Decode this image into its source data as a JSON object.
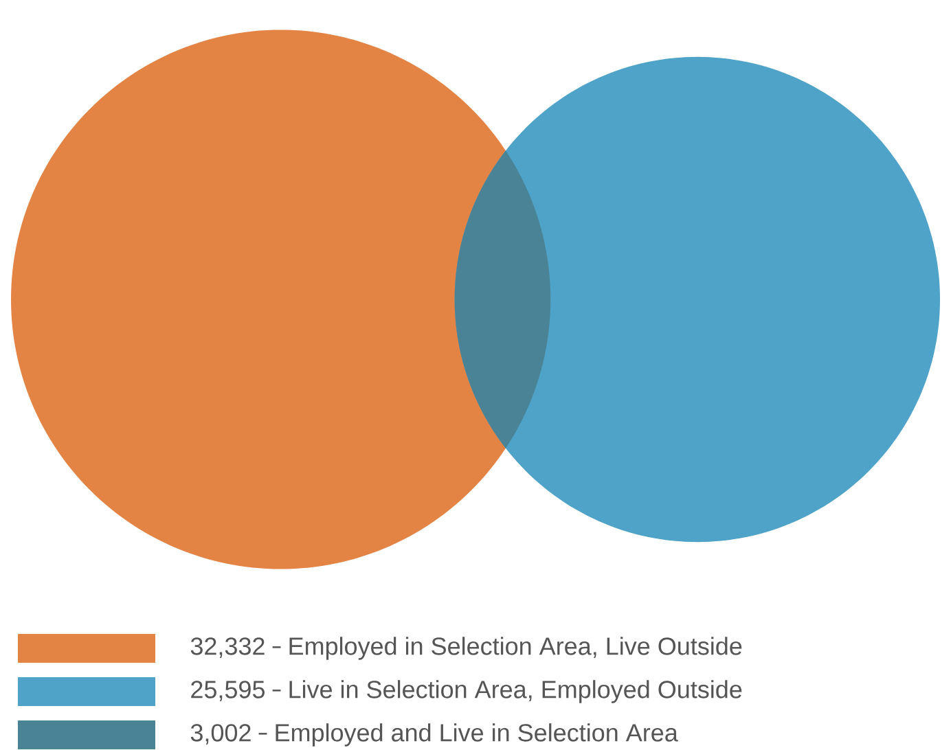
{
  "chart_data": {
    "type": "other",
    "categories": [
      "Employed in Selection Area, Live Outside",
      "Live in Selection Area, Employed Outside",
      "Employed and Live in Selection Area"
    ],
    "values": [
      32332,
      25595,
      3002
    ],
    "value_labels": [
      "32,332",
      "25,595",
      "3,002"
    ],
    "colors": [
      "#e38344",
      "#4fa3c8",
      "#4a8396"
    ]
  }
}
